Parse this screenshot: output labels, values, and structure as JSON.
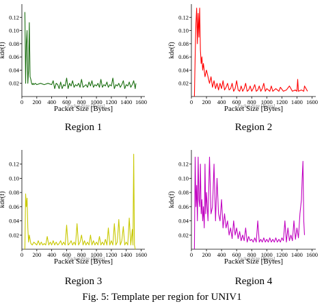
{
  "caption": "Fig. 5: Template per region for UNIV1",
  "chart_data": [
    {
      "type": "line",
      "region_label": "Region 1",
      "xlabel": "Packet Size [Bytes]",
      "ylabel": "kde(f)",
      "color": "#1a6e10",
      "xlim": [
        0,
        1650
      ],
      "ylim": [
        0,
        0.14
      ],
      "xticks": [
        0,
        200,
        400,
        600,
        800,
        1000,
        1200,
        1400,
        1600
      ],
      "yticks": [
        0.02,
        0.04,
        0.06,
        0.08,
        0.1,
        0.12
      ],
      "x": [
        40,
        50,
        60,
        70,
        80,
        90,
        100,
        110,
        120,
        130,
        140,
        150,
        160,
        180,
        200,
        250,
        300,
        350,
        400,
        420,
        440,
        460,
        480,
        500,
        520,
        540,
        560,
        580,
        600,
        620,
        640,
        660,
        680,
        700,
        720,
        740,
        760,
        780,
        800,
        820,
        840,
        860,
        880,
        900,
        920,
        940,
        960,
        980,
        1000,
        1020,
        1040,
        1060,
        1080,
        1100,
        1120,
        1140,
        1160,
        1180,
        1200,
        1220,
        1240,
        1260,
        1280,
        1300,
        1320,
        1340,
        1360,
        1380,
        1400,
        1420,
        1440,
        1460,
        1480,
        1500,
        1520,
        1530
      ],
      "values": [
        0.128,
        0.02,
        0.08,
        0.1,
        0.02,
        0.04,
        0.112,
        0.03,
        0.026,
        0.02,
        0.018,
        0.02,
        0.018,
        0.02,
        0.018,
        0.02,
        0.018,
        0.02,
        0.018,
        0.024,
        0.012,
        0.02,
        0.018,
        0.012,
        0.022,
        0.012,
        0.018,
        0.016,
        0.028,
        0.012,
        0.02,
        0.016,
        0.024,
        0.014,
        0.018,
        0.016,
        0.02,
        0.014,
        0.026,
        0.014,
        0.016,
        0.018,
        0.014,
        0.022,
        0.016,
        0.024,
        0.014,
        0.018,
        0.016,
        0.02,
        0.014,
        0.026,
        0.014,
        0.018,
        0.016,
        0.022,
        0.014,
        0.018,
        0.016,
        0.028,
        0.012,
        0.018,
        0.016,
        0.02,
        0.014,
        0.018,
        0.024,
        0.012,
        0.018,
        0.016,
        0.022,
        0.014,
        0.018,
        0.024,
        0.012,
        0.02
      ]
    },
    {
      "type": "line",
      "region_label": "Region 2",
      "xlabel": "Packet Size [Bytes]",
      "ylabel": "kde(f)",
      "color": "#ff0000",
      "xlim": [
        0,
        1650
      ],
      "ylim": [
        0,
        0.14
      ],
      "xticks": [
        0,
        200,
        400,
        600,
        800,
        1000,
        1200,
        1400,
        1600
      ],
      "yticks": [
        0.02,
        0.04,
        0.06,
        0.08,
        0.1,
        0.12
      ],
      "x": [
        40,
        50,
        60,
        70,
        80,
        90,
        100,
        110,
        120,
        130,
        140,
        150,
        160,
        180,
        200,
        220,
        240,
        260,
        280,
        300,
        320,
        340,
        360,
        380,
        400,
        420,
        440,
        460,
        480,
        500,
        520,
        540,
        560,
        580,
        600,
        620,
        640,
        660,
        680,
        700,
        720,
        740,
        760,
        780,
        800,
        820,
        840,
        860,
        880,
        900,
        920,
        940,
        960,
        980,
        1000,
        1040,
        1060,
        1080,
        1120,
        1160,
        1180,
        1220,
        1260,
        1300,
        1340,
        1380,
        1400,
        1410,
        1420,
        1460,
        1490,
        1500,
        1540
      ],
      "values": [
        0.0,
        0.06,
        0.11,
        0.134,
        0.08,
        0.126,
        0.09,
        0.134,
        0.07,
        0.05,
        0.06,
        0.04,
        0.05,
        0.03,
        0.04,
        0.03,
        0.02,
        0.03,
        0.014,
        0.024,
        0.012,
        0.02,
        0.01,
        0.02,
        0.012,
        0.024,
        0.01,
        0.014,
        0.02,
        0.01,
        0.012,
        0.02,
        0.008,
        0.012,
        0.024,
        0.01,
        0.008,
        0.016,
        0.008,
        0.012,
        0.02,
        0.008,
        0.01,
        0.016,
        0.008,
        0.012,
        0.018,
        0.008,
        0.01,
        0.016,
        0.008,
        0.012,
        0.02,
        0.008,
        0.012,
        0.008,
        0.016,
        0.008,
        0.012,
        0.008,
        0.014,
        0.008,
        0.01,
        0.016,
        0.008,
        0.01,
        0.008,
        0.026,
        0.008,
        0.01,
        0.008,
        0.016,
        0.008
      ]
    },
    {
      "type": "line",
      "region_label": "Region 3",
      "xlabel": "Packet Size [Bytes]",
      "ylabel": "kde(f)",
      "color": "#c8c800",
      "xlim": [
        0,
        1650
      ],
      "ylim": [
        0,
        0.14
      ],
      "xticks": [
        0,
        200,
        400,
        600,
        800,
        1000,
        1200,
        1400,
        1600
      ],
      "yticks": [
        0.02,
        0.04,
        0.06,
        0.08,
        0.1,
        0.12
      ],
      "x": [
        40,
        50,
        60,
        70,
        80,
        90,
        100,
        120,
        140,
        160,
        180,
        200,
        220,
        240,
        260,
        280,
        300,
        320,
        340,
        360,
        380,
        400,
        420,
        440,
        460,
        480,
        500,
        520,
        540,
        560,
        580,
        600,
        620,
        640,
        660,
        680,
        700,
        720,
        740,
        760,
        780,
        800,
        820,
        840,
        860,
        880,
        900,
        920,
        940,
        960,
        980,
        1000,
        1020,
        1040,
        1060,
        1080,
        1100,
        1120,
        1140,
        1160,
        1180,
        1200,
        1220,
        1240,
        1260,
        1280,
        1300,
        1320,
        1340,
        1360,
        1380,
        1400,
        1420,
        1440,
        1460,
        1480,
        1490,
        1500,
        1510,
        1520
      ],
      "values": [
        0.0,
        0.078,
        0.06,
        0.072,
        0.03,
        0.01,
        0.02,
        0.008,
        0.006,
        0.01,
        0.008,
        0.006,
        0.012,
        0.006,
        0.01,
        0.006,
        0.008,
        0.006,
        0.018,
        0.006,
        0.01,
        0.006,
        0.012,
        0.006,
        0.01,
        0.006,
        0.008,
        0.012,
        0.006,
        0.01,
        0.006,
        0.034,
        0.006,
        0.008,
        0.012,
        0.006,
        0.01,
        0.006,
        0.036,
        0.006,
        0.01,
        0.02,
        0.006,
        0.012,
        0.006,
        0.01,
        0.006,
        0.02,
        0.006,
        0.012,
        0.006,
        0.01,
        0.006,
        0.018,
        0.006,
        0.01,
        0.006,
        0.014,
        0.006,
        0.03,
        0.006,
        0.012,
        0.006,
        0.036,
        0.006,
        0.01,
        0.042,
        0.006,
        0.012,
        0.032,
        0.006,
        0.01,
        0.006,
        0.044,
        0.006,
        0.028,
        0.006,
        0.134,
        0.006,
        0.0
      ]
    },
    {
      "type": "line",
      "region_label": "Region 4",
      "xlabel": "Packet Size [Bytes]",
      "ylabel": "kde(f)",
      "color": "#c000c0",
      "xlim": [
        0,
        1650
      ],
      "ylim": [
        0,
        0.14
      ],
      "xticks": [
        0,
        200,
        400,
        600,
        800,
        1000,
        1200,
        1400,
        1600
      ],
      "yticks": [
        0.02,
        0.04,
        0.06,
        0.08,
        0.1,
        0.12
      ],
      "x": [
        40,
        50,
        60,
        70,
        80,
        90,
        100,
        110,
        120,
        130,
        140,
        150,
        160,
        170,
        180,
        190,
        200,
        220,
        240,
        260,
        280,
        300,
        320,
        340,
        360,
        380,
        400,
        420,
        440,
        460,
        480,
        500,
        520,
        540,
        560,
        580,
        600,
        620,
        640,
        660,
        680,
        700,
        720,
        740,
        760,
        780,
        800,
        820,
        840,
        860,
        880,
        900,
        920,
        940,
        960,
        980,
        1000,
        1020,
        1040,
        1060,
        1080,
        1100,
        1120,
        1140,
        1160,
        1180,
        1200,
        1220,
        1240,
        1260,
        1280,
        1300,
        1320,
        1340,
        1360,
        1380,
        1400,
        1420,
        1440,
        1460,
        1470,
        1480,
        1490,
        1500
      ],
      "values": [
        0.0,
        0.13,
        0.06,
        0.09,
        0.04,
        0.13,
        0.07,
        0.06,
        0.12,
        0.05,
        0.07,
        0.04,
        0.06,
        0.03,
        0.12,
        0.05,
        0.08,
        0.04,
        0.13,
        0.05,
        0.06,
        0.12,
        0.04,
        0.1,
        0.05,
        0.04,
        0.07,
        0.03,
        0.05,
        0.03,
        0.04,
        0.02,
        0.03,
        0.015,
        0.04,
        0.02,
        0.03,
        0.015,
        0.025,
        0.012,
        0.02,
        0.012,
        0.03,
        0.01,
        0.018,
        0.012,
        0.014,
        0.01,
        0.016,
        0.01,
        0.04,
        0.01,
        0.014,
        0.01,
        0.016,
        0.01,
        0.014,
        0.01,
        0.016,
        0.01,
        0.014,
        0.01,
        0.016,
        0.01,
        0.014,
        0.01,
        0.016,
        0.012,
        0.04,
        0.01,
        0.03,
        0.012,
        0.02,
        0.012,
        0.04,
        0.014,
        0.03,
        0.016,
        0.05,
        0.07,
        0.1,
        0.124,
        0.04,
        0.02
      ]
    }
  ]
}
